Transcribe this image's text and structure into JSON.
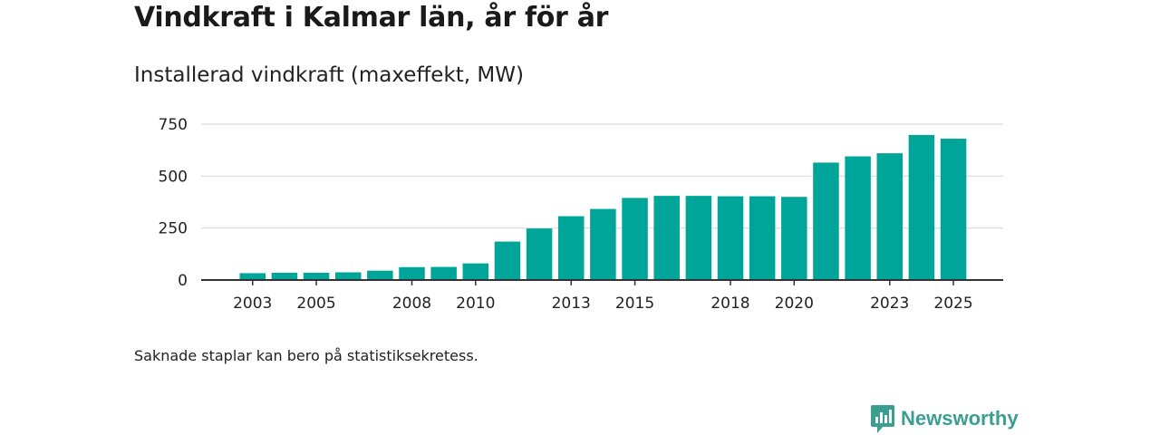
{
  "header": {
    "title": "Vindkraft i Kalmar län, år för år",
    "subtitle": "Installerad vindkraft (maxeffekt, MW)"
  },
  "footer": {
    "note": "Saknade staplar kan bero på statistiksekretess.",
    "brand_name": "Newsworthy"
  },
  "colors": {
    "bar": "#00a599",
    "brand": "#3a9e90",
    "grid": "#d9d9d9",
    "axis": "#333333"
  },
  "chart_data": {
    "type": "bar",
    "title": "Vindkraft i Kalmar län, år för år",
    "subtitle": "Installerad vindkraft (maxeffekt, MW)",
    "xlabel": "",
    "ylabel": "",
    "categories": [
      "2003",
      "2004",
      "2005",
      "2006",
      "2007",
      "2008",
      "2009",
      "2010",
      "2011",
      "2012",
      "2013",
      "2014",
      "2015",
      "2016",
      "2017",
      "2018",
      "2019",
      "2020",
      "2021",
      "2022",
      "2023",
      "2024",
      "2025"
    ],
    "values": [
      33,
      35,
      35,
      37,
      45,
      62,
      63,
      80,
      185,
      248,
      307,
      342,
      395,
      405,
      405,
      403,
      403,
      400,
      565,
      595,
      610,
      698,
      680
    ],
    "x_tick_labels": [
      "2003",
      "2005",
      "2008",
      "2010",
      "2013",
      "2015",
      "2018",
      "2020",
      "2023",
      "2025"
    ],
    "y_ticks": [
      0,
      250,
      500,
      750
    ],
    "ylim": [
      0,
      750
    ],
    "grid": true
  }
}
